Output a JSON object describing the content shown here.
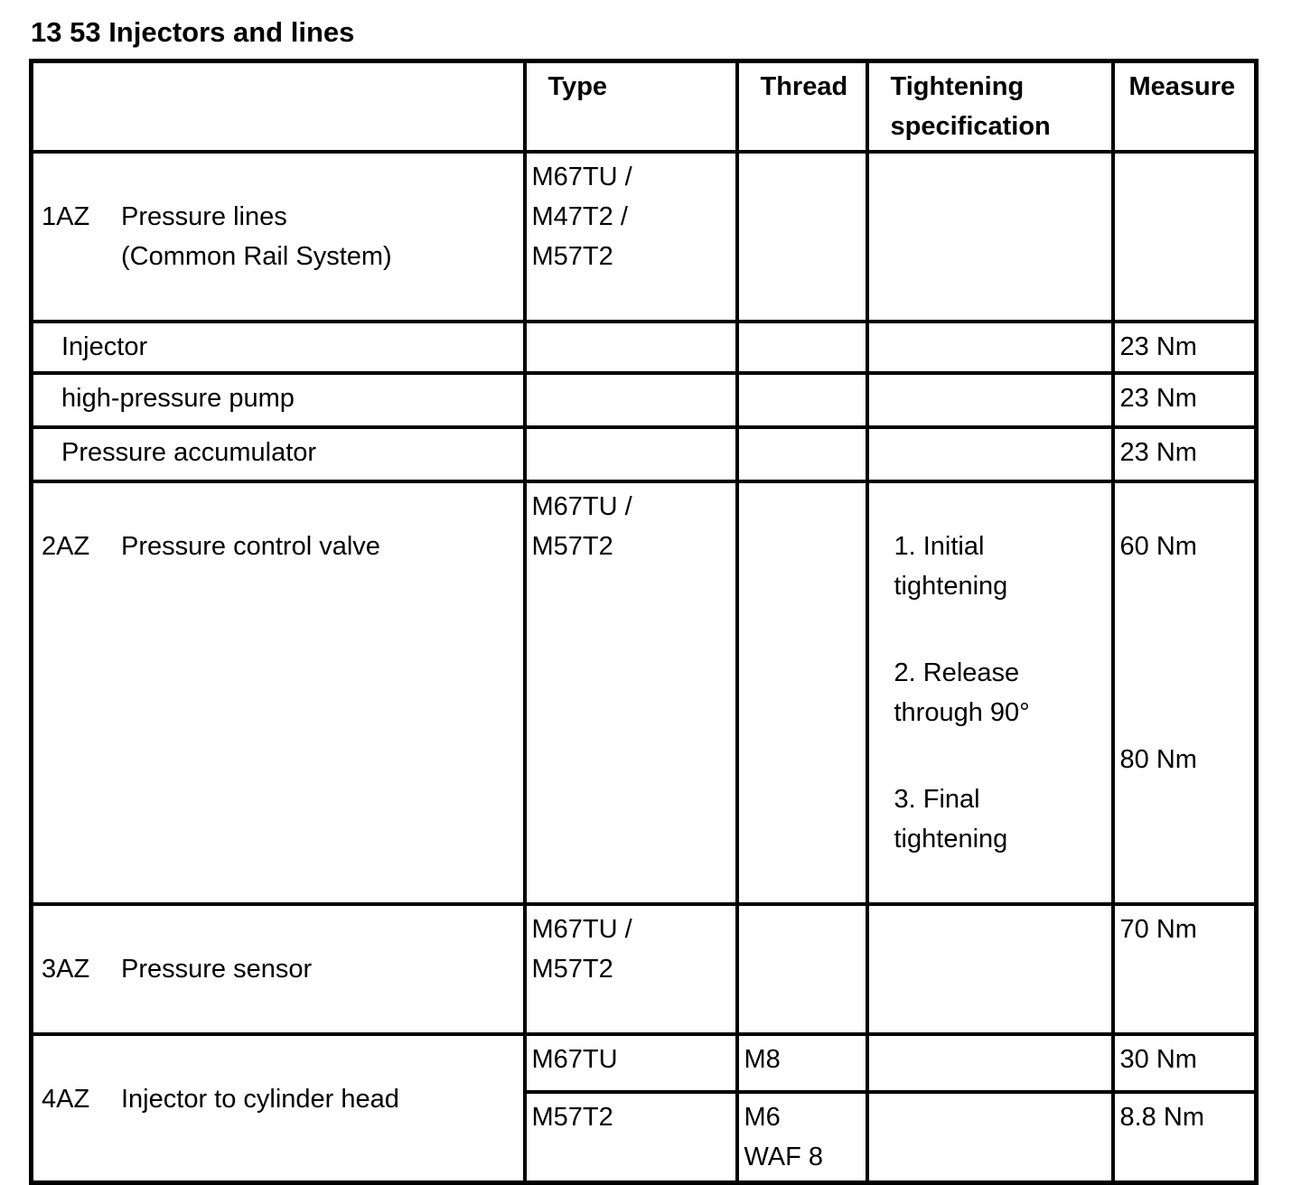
{
  "title": "13 53 Injectors and lines",
  "table": {
    "header": {
      "item": "",
      "type": "Type",
      "thread": "Thread",
      "tightening": "Tightening specification",
      "measure": "Measure"
    },
    "rows": [
      {
        "id": "1AZ",
        "item": "Pressure lines\n(Common Rail System)",
        "type": "M67TU /\nM47T2 /\nM57T2",
        "thread": "",
        "tightening": "",
        "measure": ""
      },
      {
        "item": "Injector",
        "measure": "23 Nm"
      },
      {
        "item": "high-pressure pump",
        "measure": "23 Nm"
      },
      {
        "item": "Pressure accumulator",
        "measure": "23 Nm"
      },
      {
        "id": "2AZ",
        "item": "Pressure control valve",
        "type": "M67TU /\nM57T2",
        "thread": "",
        "tightening_steps": [
          "1. Initial\ntightening",
          "2. Release\nthrough 90°",
          "3. Final\ntightening"
        ],
        "measures": [
          "60 Nm",
          "80 Nm"
        ]
      },
      {
        "id": "3AZ",
        "item": "Pressure sensor",
        "type": "M67TU /\nM57T2",
        "thread": "",
        "tightening": "",
        "measure": "70 Nm"
      },
      {
        "id": "4AZ",
        "item": "Injector to cylinder head",
        "subrows": [
          {
            "type": "M67TU",
            "thread": "M8",
            "tightening": "",
            "measure": "30 Nm"
          },
          {
            "type": "M57T2",
            "thread": "M6\nWAF 8",
            "tightening": "",
            "measure": "8.8 Nm"
          }
        ]
      }
    ]
  }
}
